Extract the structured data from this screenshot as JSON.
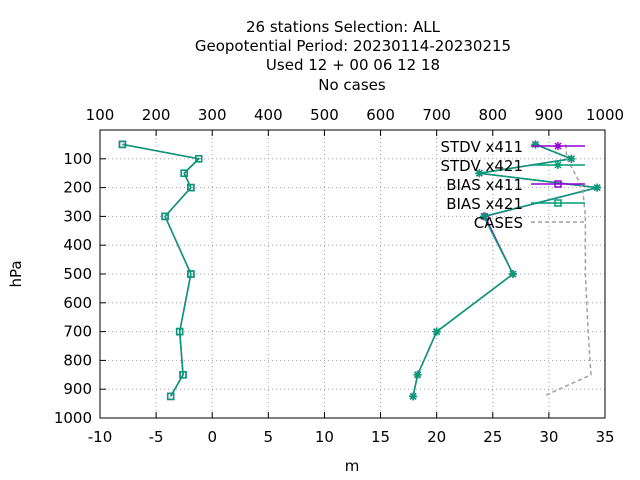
{
  "title_lines": [
    "26 stations Selection: ALL",
    "Geopotential  Period: 20230114-20230215",
    "Used  12 + 00 06 12 18",
    "No cases"
  ],
  "colors": {
    "x411": "#9400d3",
    "x421": "#009e73",
    "cases": "#a0a0a0",
    "grid": "#a0a0a0"
  },
  "chart_data": {
    "type": "line",
    "xlabel": "m",
    "ylabel": "hPa",
    "xlim": [
      -10,
      35
    ],
    "ylim": [
      1000,
      0
    ],
    "x_ticks": [
      "-10",
      "-5",
      "0",
      "5",
      "10",
      "15",
      "20",
      "25",
      "30",
      "35"
    ],
    "y_ticks": [
      "100",
      "200",
      "300",
      "400",
      "500",
      "600",
      "700",
      "800",
      "900",
      "1000"
    ],
    "x2_label": "",
    "x2lim": [
      100,
      1000
    ],
    "x2_ticks": [
      "100",
      "200",
      "300",
      "400",
      "500",
      "600",
      "700",
      "800",
      "900",
      "1000"
    ],
    "grid": true,
    "legend_position": "top-right",
    "pressure_levels": [
      50,
      100,
      150,
      200,
      300,
      500,
      700,
      850,
      925
    ],
    "series": [
      {
        "name": "STDV x411",
        "color_key": "x411",
        "marker": "star",
        "values": [
          28.8,
          32.0,
          23.8,
          34.3,
          24.3,
          26.8,
          20.0,
          18.3,
          17.9
        ]
      },
      {
        "name": "STDV x421",
        "color_key": "x421",
        "marker": "star",
        "values": [
          28.8,
          32.0,
          23.8,
          34.3,
          24.2,
          26.8,
          20.0,
          18.3,
          17.9
        ]
      },
      {
        "name": "BIAS x411",
        "color_key": "x411",
        "marker": "square",
        "values": [
          -8.0,
          -1.2,
          -2.5,
          -1.9,
          -4.2,
          -1.9,
          -2.9,
          -2.6,
          -3.7
        ]
      },
      {
        "name": "BIAS x421",
        "color_key": "x421",
        "marker": "square",
        "values": [
          -8.0,
          -1.2,
          -2.5,
          -1.9,
          -4.2,
          -1.9,
          -2.9,
          -2.6,
          -3.7
        ]
      },
      {
        "name": "CASES",
        "color_key": "cases",
        "axis": "x2",
        "dashed": true,
        "points": [
          [
            930,
            50
          ],
          [
            932,
            100
          ],
          [
            960,
            200
          ],
          [
            965,
            300
          ],
          [
            965,
            500
          ],
          [
            970,
            700
          ],
          [
            975,
            850
          ],
          [
            890,
            925
          ]
        ]
      }
    ]
  }
}
